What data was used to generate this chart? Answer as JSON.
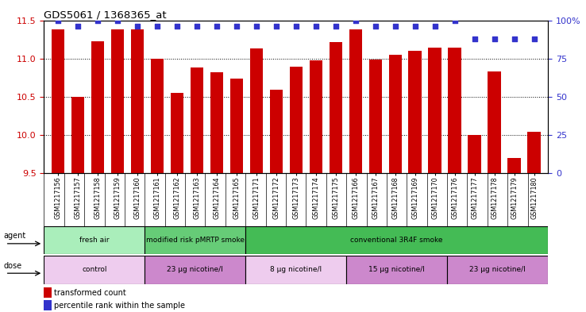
{
  "title": "GDS5061 / 1368365_at",
  "samples": [
    "GSM1217156",
    "GSM1217157",
    "GSM1217158",
    "GSM1217159",
    "GSM1217160",
    "GSM1217161",
    "GSM1217162",
    "GSM1217163",
    "GSM1217164",
    "GSM1217165",
    "GSM1217171",
    "GSM1217172",
    "GSM1217173",
    "GSM1217174",
    "GSM1217175",
    "GSM1217166",
    "GSM1217167",
    "GSM1217168",
    "GSM1217169",
    "GSM1217170",
    "GSM1217176",
    "GSM1217177",
    "GSM1217178",
    "GSM1217179",
    "GSM1217180"
  ],
  "bar_values": [
    11.38,
    10.5,
    11.23,
    11.38,
    11.38,
    11.0,
    10.55,
    10.88,
    10.82,
    10.74,
    11.13,
    10.59,
    10.89,
    10.98,
    11.22,
    11.38,
    10.99,
    11.05,
    11.1,
    11.14,
    11.14,
    10.0,
    10.83,
    9.7,
    10.04
  ],
  "percentile_values": [
    100,
    96,
    100,
    100,
    96,
    96,
    96,
    96,
    96,
    96,
    96,
    96,
    96,
    96,
    96,
    100,
    96,
    96,
    96,
    96,
    100,
    88,
    88,
    88,
    88
  ],
  "bar_color": "#cc0000",
  "percentile_color": "#3333cc",
  "ylim_left": [
    9.5,
    11.5
  ],
  "ylim_right": [
    0,
    100
  ],
  "yticks_left": [
    9.5,
    10.0,
    10.5,
    11.0,
    11.5
  ],
  "yticks_right": [
    0,
    25,
    50,
    75,
    100
  ],
  "agent_groups": [
    {
      "label": "fresh air",
      "start": 0,
      "end": 5,
      "color": "#aaeebb"
    },
    {
      "label": "modified risk pMRTP smoke",
      "start": 5,
      "end": 10,
      "color": "#66cc77"
    },
    {
      "label": "conventional 3R4F smoke",
      "start": 10,
      "end": 25,
      "color": "#44bb55"
    }
  ],
  "dose_groups": [
    {
      "label": "control",
      "start": 0,
      "end": 5,
      "color": "#eeccee"
    },
    {
      "label": "23 μg nicotine/l",
      "start": 5,
      "end": 10,
      "color": "#cc88cc"
    },
    {
      "label": "8 μg nicotine/l",
      "start": 10,
      "end": 15,
      "color": "#eeccee"
    },
    {
      "label": "15 μg nicotine/l",
      "start": 15,
      "end": 20,
      "color": "#cc88cc"
    },
    {
      "label": "23 μg nicotine/l",
      "start": 20,
      "end": 25,
      "color": "#cc88cc"
    }
  ],
  "legend_items": [
    {
      "label": "transformed count",
      "color": "#cc0000"
    },
    {
      "label": "percentile rank within the sample",
      "color": "#3333cc"
    }
  ],
  "ylabel_left_color": "#cc0000",
  "ylabel_right_color": "#3333cc",
  "grid_color": "#000000",
  "background_color": "#ffffff",
  "plot_area_color": "#ffffff",
  "xtick_bg_color": "#dddddd"
}
